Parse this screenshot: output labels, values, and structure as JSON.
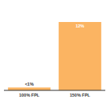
{
  "chart_data": {
    "type": "bar",
    "categories": [
      "100% FPL",
      "150% FPL"
    ],
    "values": [
      0.5,
      12
    ],
    "value_labels": [
      "<1%",
      "12%"
    ],
    "color": "#fbb462",
    "ylim": [
      0,
      12
    ],
    "data_labels": true,
    "tick_labels": "x"
  }
}
